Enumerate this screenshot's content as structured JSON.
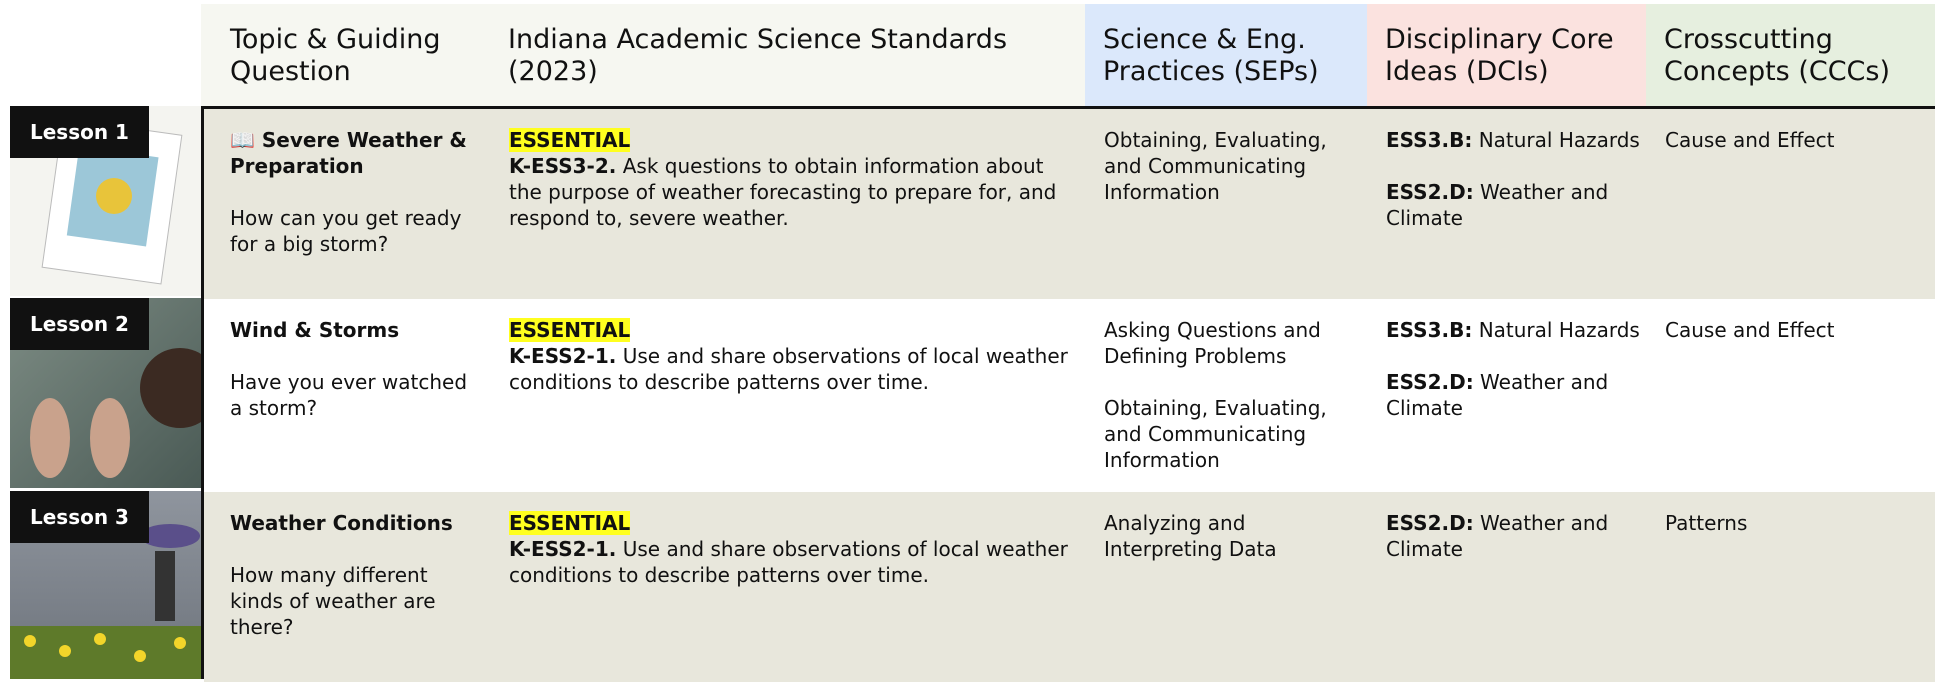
{
  "header": [
    "Topic & Guiding Question",
    "Indiana Academic Science Standards (2023)",
    "Science & Eng. Practices (SEPs)",
    "Disciplinary Core Ideas (DCIs)",
    "Crosscutting Concepts (CCCs)"
  ],
  "rows": [
    {
      "lesson": "Lesson 1",
      "topic": "📖 Severe Weather & Preparation",
      "question": "How can you get ready for a big storm?",
      "tag": "ESSENTIAL",
      "code": "K-ESS3-2.",
      "standard": "Ask questions to obtain information about the purpose of weather forecasting to prepare for, and respond to, severe weather.",
      "seps": [
        "Obtaining, Evaluating, and Communicating Information"
      ],
      "dcis": [
        {
          "code": "ESS3.B:",
          "text": "Natural Hazards"
        },
        {
          "code": "ESS2.D:",
          "text": "Weather and Climate"
        }
      ],
      "ccc": "Cause and Effect"
    },
    {
      "lesson": "Lesson 2",
      "topic": "Wind & Storms",
      "question": "Have you ever watched a storm?",
      "tag": "ESSENTIAL",
      "code": "K-ESS2-1.",
      "standard": "Use and share observations of local weather conditions to describe patterns over time.",
      "seps": [
        "Asking Questions and Defining Problems",
        "Obtaining, Evaluating, and Communicating Information"
      ],
      "dcis": [
        {
          "code": "ESS3.B:",
          "text": "Natural Hazards"
        },
        {
          "code": "ESS2.D:",
          "text": "Weather and Climate"
        }
      ],
      "ccc": "Cause and Effect"
    },
    {
      "lesson": "Lesson 3",
      "topic": "Weather Conditions",
      "question": "How many different kinds of weather are there?",
      "tag": "ESSENTIAL",
      "code": "K-ESS2-1.",
      "standard": "Use and share observations of local weather conditions to describe patterns over time.",
      "seps": [
        "Analyzing and Interpreting Data"
      ],
      "dcis": [
        {
          "code": "ESS2.D:",
          "text": "Weather and Climate"
        }
      ],
      "ccc": "Patterns"
    }
  ]
}
